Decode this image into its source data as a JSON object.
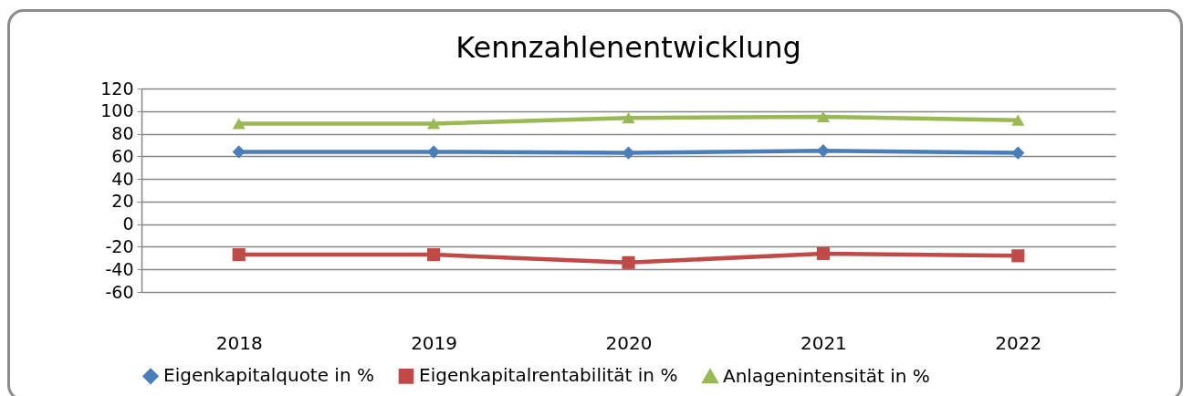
{
  "chart_data": {
    "type": "line",
    "title": "Kennzahlenentwicklung",
    "categories": [
      "2018",
      "2019",
      "2020",
      "2021",
      "2022"
    ],
    "series": [
      {
        "name": "Eigenkapitalquote in %",
        "color": "#4a7ebb",
        "marker": "diamond",
        "values": [
          64,
          64,
          63,
          65,
          63
        ]
      },
      {
        "name": "Eigenkapitalrentabilität in %",
        "color": "#be4b48",
        "marker": "square",
        "values": [
          -27,
          -27,
          -34,
          -26,
          -28
        ]
      },
      {
        "name": "Anlagenintensität in %",
        "color": "#98b954",
        "marker": "triangle",
        "values": [
          89,
          89,
          94,
          95,
          92
        ]
      }
    ],
    "ylim": [
      -60,
      120
    ],
    "yticks": [
      -60,
      -40,
      -20,
      0,
      20,
      40,
      60,
      80,
      100,
      120
    ],
    "grid": "y",
    "legend": "bottom"
  }
}
